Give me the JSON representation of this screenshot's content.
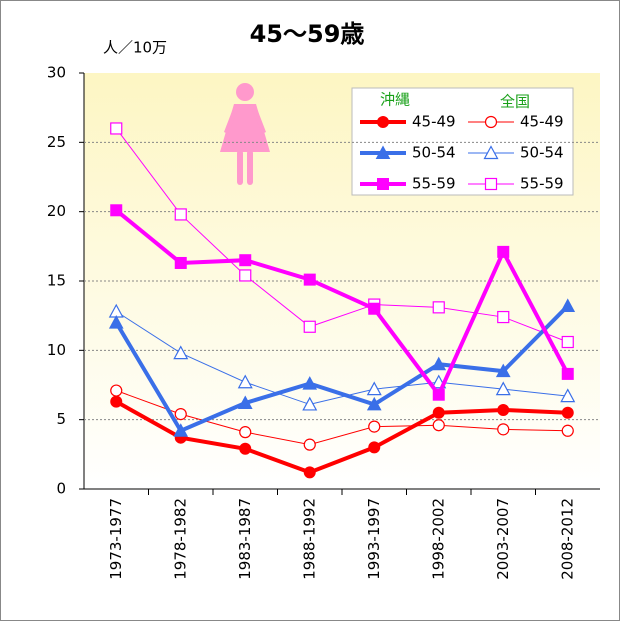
{
  "chart_data": {
    "type": "line",
    "title": "45〜59歳",
    "y_unit": "人／10万",
    "categories": [
      "1973-1977",
      "1978-1982",
      "1983-1987",
      "1988-1992",
      "1993-1997",
      "1998-2002",
      "2003-2007",
      "2008-2012"
    ],
    "ylim": [
      0,
      30
    ],
    "yticks": [
      0,
      5,
      10,
      15,
      20,
      25,
      30
    ],
    "grid": true,
    "series": [
      {
        "name": "45-49",
        "group": "沖縄",
        "color": "#ff0000",
        "marker": "circle",
        "filled": true,
        "line_width": 4,
        "values": [
          6.3,
          3.7,
          2.9,
          1.2,
          3.0,
          5.5,
          5.7,
          5.5
        ]
      },
      {
        "name": "45-49",
        "group": "全国",
        "color": "#ff0000",
        "marker": "circle",
        "filled": false,
        "line_width": 1,
        "values": [
          7.1,
          5.4,
          4.1,
          3.2,
          4.5,
          4.6,
          4.3,
          4.2
        ]
      },
      {
        "name": "50-54",
        "group": "沖縄",
        "color": "#3a6fe8",
        "marker": "triangle",
        "filled": true,
        "line_width": 4,
        "values": [
          12.0,
          4.2,
          6.2,
          7.6,
          6.1,
          9.0,
          8.5,
          13.2
        ]
      },
      {
        "name": "50-54",
        "group": "全国",
        "color": "#3a6fe8",
        "marker": "triangle",
        "filled": false,
        "line_width": 1,
        "values": [
          12.8,
          9.8,
          7.7,
          6.1,
          7.2,
          7.7,
          7.2,
          6.7
        ]
      },
      {
        "name": "55-59",
        "group": "沖縄",
        "color": "#ff00ff",
        "marker": "square",
        "filled": true,
        "line_width": 4,
        "values": [
          20.1,
          16.3,
          16.5,
          15.1,
          13.0,
          6.8,
          17.1,
          8.3
        ]
      },
      {
        "name": "55-59",
        "group": "全国",
        "color": "#ff00ff",
        "marker": "square",
        "filled": false,
        "line_width": 1,
        "values": [
          26.0,
          19.8,
          15.4,
          11.7,
          13.3,
          13.1,
          12.4,
          10.6
        ]
      }
    ]
  }
}
